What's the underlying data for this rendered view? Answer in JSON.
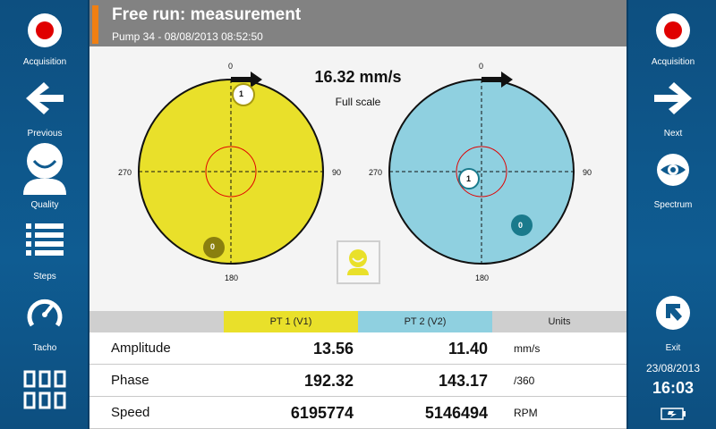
{
  "header": {
    "title": "Free run: measurement",
    "subtitle": "Pump 34 - 08/08/2013 08:52:50"
  },
  "left_sidebar": {
    "acquisition": "Acquisition",
    "previous": "Previous",
    "quality": "Quality",
    "steps": "Steps",
    "tacho": "Tacho"
  },
  "right_sidebar": {
    "acquisition": "Acquisition",
    "next": "Next",
    "spectrum": "Spectrum",
    "exit": "Exit",
    "date": "23/08/2013",
    "time": "16:03"
  },
  "scale": {
    "value": "16.32 mm/s",
    "label": "Full scale"
  },
  "dials": [
    {
      "name": "PT 1 (V1)",
      "color": "#e9e02a",
      "top": "0",
      "right": "90",
      "bottom": "180",
      "left": "270",
      "markers": [
        "1",
        "0"
      ]
    },
    {
      "name": "PT 2 (V2)",
      "color": "#8fd0e0",
      "top": "0",
      "right": "90",
      "bottom": "180",
      "left": "270",
      "markers": [
        "1",
        "0"
      ]
    }
  ],
  "table": {
    "headers": [
      "PT 1 (V1)",
      "PT 2 (V2)",
      "Units"
    ],
    "header_colors": [
      "#e9e02a",
      "#8fd0e0",
      "#cfcfcf"
    ],
    "rows": [
      {
        "name": "Amplitude",
        "v1": "13.56",
        "v2": "11.40",
        "unit": "mm/s"
      },
      {
        "name": "Phase",
        "v1": "192.32",
        "v2": "143.17",
        "unit": "/360"
      },
      {
        "name": "Speed",
        "v1": "6195774",
        "v2": "5146494",
        "unit": "RPM"
      }
    ]
  },
  "colors": {
    "sidebar": "#0f5a8e",
    "title_bar": "#828282",
    "accent": "#f07f12",
    "record": "#e00000"
  }
}
